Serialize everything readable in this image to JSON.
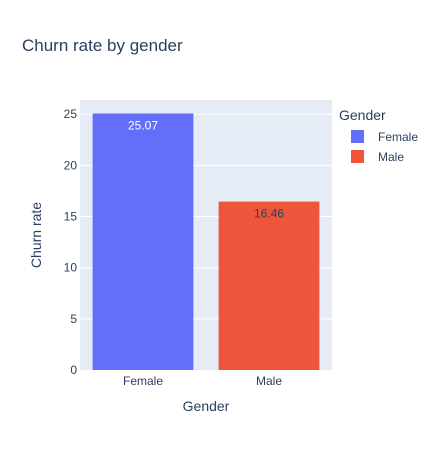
{
  "chart_data": {
    "type": "bar",
    "title": "Churn rate by gender",
    "xlabel": "Gender",
    "ylabel": "Churn rate",
    "categories": [
      "Female",
      "Male"
    ],
    "values": [
      25.07,
      16.46
    ],
    "value_labels": [
      "25.07",
      "16.46"
    ],
    "bar_colors": [
      "#636efa",
      "#ef553b"
    ],
    "value_label_colors": [
      "#ffffff",
      "#2a3f5f"
    ],
    "ylim": [
      0,
      26.39
    ],
    "yticks": [
      0,
      5,
      10,
      15,
      20,
      25
    ],
    "grid": true,
    "plot_background": "#e5ecf6",
    "legend": {
      "title": "Gender",
      "placement": "top-right",
      "entries": [
        {
          "label": "Female",
          "color": "#636efa"
        },
        {
          "label": "Male",
          "color": "#ef553b"
        }
      ]
    }
  }
}
